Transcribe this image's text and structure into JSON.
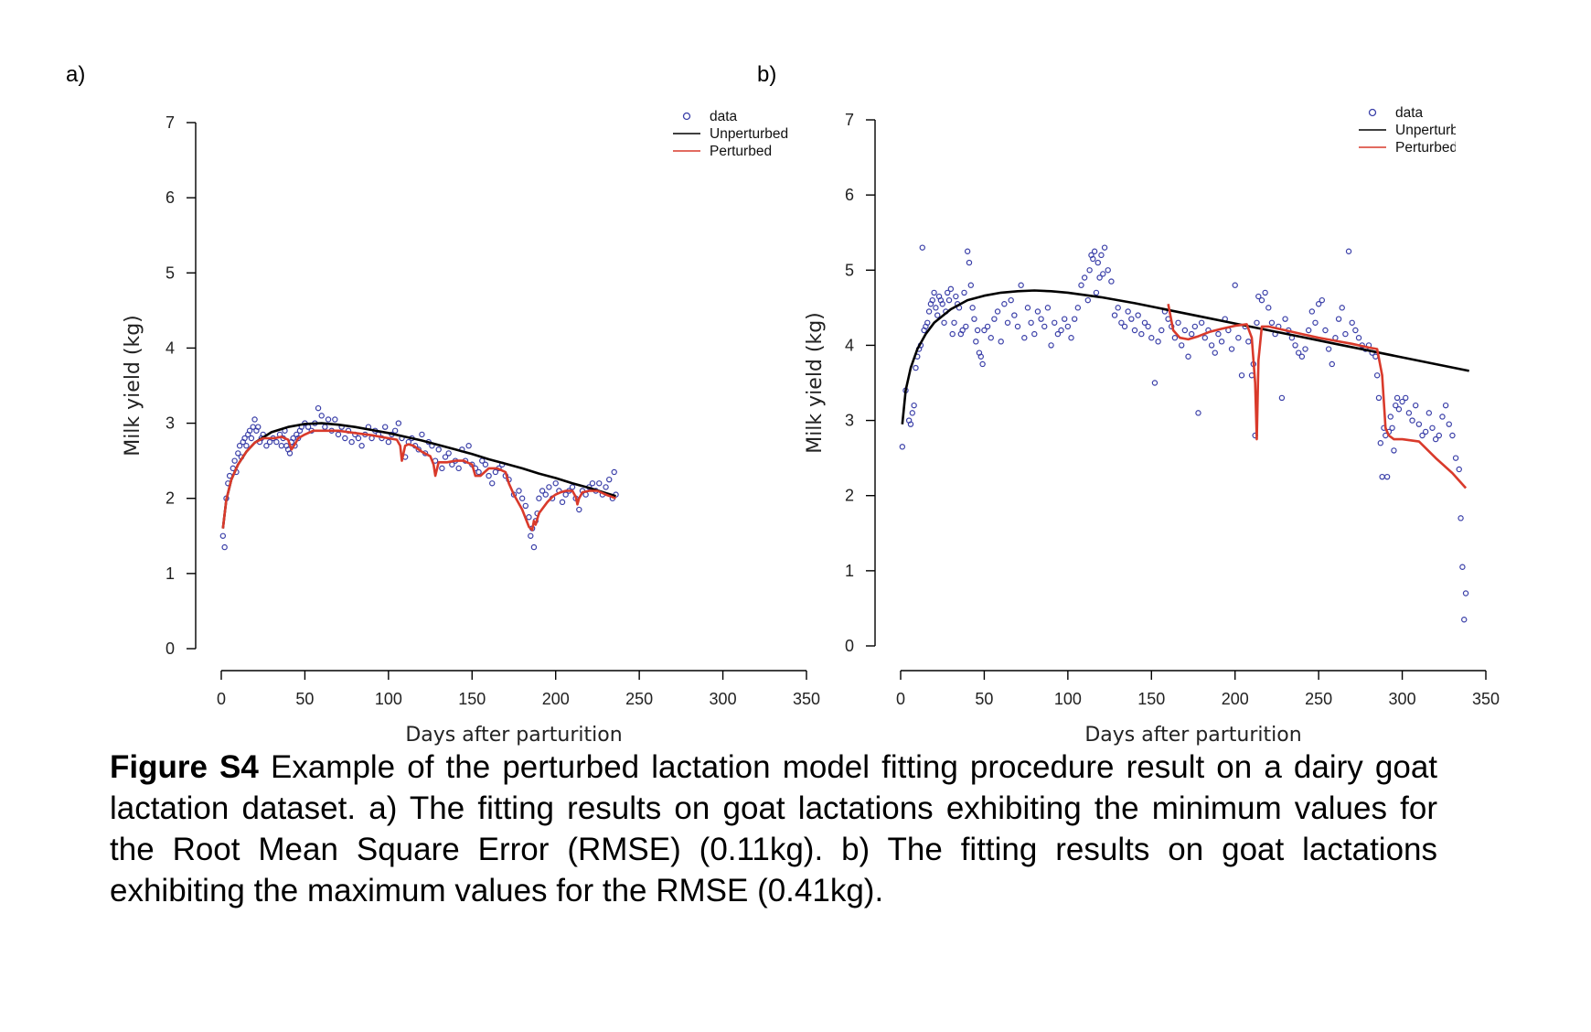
{
  "panels": [
    {
      "label": "a)"
    },
    {
      "label": "b)"
    }
  ],
  "caption": {
    "bold": "Figure S4",
    "text": " Example of the perturbed lactation model fitting procedure result on a dairy goat lactation dataset. a) The fitting results on goat lactations exhibiting the minimum values for the Root Mean Square Error (RMSE) (0.11kg). b) The fitting results on goat lactations exhibiting the maximum values for the RMSE (0.41kg)."
  },
  "colors": {
    "data": "#3a3fa8",
    "unperturbed": "#000000",
    "perturbed": "#d93a2b"
  },
  "chart_data": [
    {
      "type": "scatter",
      "xlabel": "Days after parturition",
      "ylabel": "Milk yield (kg)",
      "xlim": [
        0,
        350
      ],
      "ylim": [
        0,
        7
      ],
      "xticks": [
        0,
        50,
        100,
        150,
        200,
        250,
        300,
        350
      ],
      "yticks": [
        0,
        1,
        2,
        3,
        4,
        5,
        6,
        7
      ],
      "legend": {
        "position": "top-right",
        "entries": [
          "data",
          "Unperturbed",
          "Perturbed"
        ]
      },
      "series": [
        {
          "name": "data",
          "kind": "points",
          "x": [
            1,
            2,
            3,
            4,
            5,
            7,
            8,
            9,
            10,
            11,
            12,
            13,
            14,
            15,
            16,
            17,
            18,
            19,
            20,
            21,
            22,
            23,
            24,
            25,
            27,
            29,
            31,
            33,
            35,
            36,
            37,
            38,
            39,
            40,
            41,
            42,
            43,
            44,
            45,
            46,
            47,
            48,
            50,
            52,
            54,
            56,
            58,
            60,
            62,
            64,
            66,
            68,
            70,
            72,
            74,
            76,
            78,
            80,
            82,
            84,
            86,
            88,
            90,
            92,
            94,
            96,
            98,
            100,
            102,
            104,
            106,
            108,
            110,
            112,
            114,
            116,
            118,
            120,
            122,
            124,
            126,
            128,
            130,
            132,
            134,
            136,
            138,
            140,
            142,
            144,
            146,
            148,
            150,
            152,
            154,
            156,
            158,
            160,
            162,
            164,
            166,
            168,
            170,
            172,
            175,
            178,
            180,
            182,
            184,
            185,
            186,
            187,
            188,
            189,
            190,
            192,
            194,
            196,
            198,
            200,
            202,
            204,
            206,
            208,
            210,
            212,
            214,
            216,
            218,
            220,
            222,
            224,
            226,
            228,
            230,
            232,
            234,
            235,
            236
          ],
          "y": [
            1.5,
            1.35,
            2.0,
            2.2,
            2.3,
            2.4,
            2.5,
            2.35,
            2.6,
            2.7,
            2.55,
            2.75,
            2.8,
            2.7,
            2.85,
            2.9,
            2.8,
            2.95,
            3.05,
            2.9,
            2.95,
            2.75,
            2.8,
            2.85,
            2.7,
            2.75,
            2.8,
            2.75,
            2.85,
            2.7,
            2.8,
            2.9,
            2.7,
            2.65,
            2.6,
            2.75,
            2.8,
            2.7,
            2.85,
            2.8,
            2.9,
            2.95,
            3.0,
            2.95,
            2.9,
            3.0,
            3.2,
            3.1,
            2.95,
            3.05,
            2.9,
            3.05,
            2.85,
            2.95,
            2.8,
            2.9,
            2.75,
            2.85,
            2.8,
            2.7,
            2.85,
            2.95,
            2.8,
            2.9,
            2.85,
            2.8,
            2.95,
            2.75,
            2.85,
            2.9,
            3.0,
            2.8,
            2.55,
            2.75,
            2.8,
            2.7,
            2.65,
            2.85,
            2.6,
            2.75,
            2.7,
            2.5,
            2.65,
            2.4,
            2.55,
            2.6,
            2.45,
            2.5,
            2.4,
            2.65,
            2.5,
            2.7,
            2.45,
            2.4,
            2.35,
            2.5,
            2.45,
            2.3,
            2.2,
            2.35,
            2.4,
            2.45,
            2.3,
            2.25,
            2.05,
            2.1,
            2.0,
            1.9,
            1.75,
            1.5,
            1.6,
            1.35,
            1.7,
            1.8,
            2.0,
            2.1,
            2.05,
            2.15,
            2.0,
            2.2,
            2.1,
            1.95,
            2.05,
            2.1,
            2.15,
            2.0,
            1.85,
            2.1,
            2.05,
            2.15,
            2.2,
            2.1,
            2.2,
            2.05,
            2.15,
            2.25,
            2.0,
            2.35,
            2.05
          ]
        },
        {
          "name": "Unperturbed",
          "kind": "line",
          "x": [
            1,
            3,
            6,
            10,
            15,
            20,
            30,
            40,
            50,
            60,
            70,
            80,
            90,
            100,
            110,
            120,
            130,
            140,
            150,
            160,
            170,
            180,
            190,
            200,
            210,
            220,
            230,
            236
          ],
          "y": [
            1.6,
            1.98,
            2.25,
            2.45,
            2.62,
            2.74,
            2.88,
            2.95,
            2.99,
            3.0,
            2.98,
            2.95,
            2.91,
            2.87,
            2.82,
            2.77,
            2.71,
            2.65,
            2.59,
            2.52,
            2.46,
            2.4,
            2.33,
            2.27,
            2.2,
            2.14,
            2.07,
            2.03
          ]
        },
        {
          "name": "Perturbed",
          "kind": "line",
          "x": [
            1,
            3,
            6,
            10,
            15,
            20,
            25,
            28,
            32,
            36,
            40,
            42,
            44,
            46,
            50,
            55,
            60,
            70,
            80,
            90,
            100,
            105,
            107,
            108,
            110,
            112,
            115,
            120,
            125,
            127,
            128,
            130,
            135,
            140,
            145,
            150,
            152,
            155,
            160,
            165,
            170,
            172,
            175,
            180,
            184,
            186,
            187,
            188,
            190,
            195,
            198,
            200,
            203,
            206,
            210,
            212,
            213,
            214,
            216,
            220,
            225,
            230,
            236
          ],
          "y": [
            1.6,
            1.98,
            2.25,
            2.45,
            2.62,
            2.74,
            2.8,
            2.8,
            2.8,
            2.82,
            2.78,
            2.65,
            2.72,
            2.8,
            2.85,
            2.9,
            2.9,
            2.9,
            2.87,
            2.84,
            2.8,
            2.78,
            2.7,
            2.5,
            2.7,
            2.72,
            2.7,
            2.62,
            2.56,
            2.45,
            2.3,
            2.48,
            2.48,
            2.5,
            2.5,
            2.45,
            2.3,
            2.3,
            2.4,
            2.4,
            2.35,
            2.2,
            2.05,
            1.85,
            1.62,
            1.58,
            1.7,
            1.65,
            1.8,
            1.95,
            2.02,
            2.05,
            2.08,
            2.1,
            2.1,
            2.02,
            1.92,
            2.0,
            2.08,
            2.1,
            2.1,
            2.05,
            2.0
          ]
        }
      ]
    },
    {
      "type": "scatter",
      "xlabel": "Days after parturition",
      "ylabel": "Milk yield (kg)",
      "xlim": [
        0,
        350
      ],
      "ylim": [
        0,
        7
      ],
      "xticks": [
        0,
        50,
        100,
        150,
        200,
        250,
        300,
        350
      ],
      "yticks": [
        0,
        1,
        2,
        3,
        4,
        5,
        6,
        7
      ],
      "legend": {
        "position": "top-right",
        "entries": [
          "data",
          "Unperturbed",
          "Perturbed"
        ]
      },
      "series": [
        {
          "name": "data",
          "kind": "points",
          "x": [
            1,
            3,
            5,
            6,
            7,
            8,
            9,
            10,
            11,
            12,
            13,
            14,
            15,
            16,
            17,
            18,
            19,
            20,
            21,
            22,
            23,
            24,
            25,
            26,
            27,
            28,
            29,
            30,
            31,
            32,
            33,
            34,
            35,
            36,
            37,
            38,
            39,
            40,
            41,
            42,
            43,
            44,
            45,
            46,
            47,
            48,
            49,
            50,
            52,
            54,
            56,
            58,
            60,
            62,
            64,
            66,
            68,
            70,
            72,
            74,
            76,
            78,
            80,
            82,
            84,
            86,
            88,
            90,
            92,
            94,
            96,
            98,
            100,
            102,
            104,
            106,
            108,
            110,
            112,
            113,
            114,
            115,
            116,
            117,
            118,
            119,
            120,
            121,
            122,
            124,
            126,
            128,
            130,
            132,
            134,
            136,
            138,
            140,
            142,
            144,
            146,
            148,
            150,
            152,
            154,
            156,
            158,
            160,
            162,
            164,
            166,
            168,
            170,
            172,
            174,
            176,
            178,
            180,
            182,
            184,
            186,
            188,
            190,
            192,
            194,
            196,
            198,
            200,
            202,
            204,
            206,
            208,
            210,
            211,
            212,
            213,
            214,
            216,
            218,
            220,
            222,
            224,
            226,
            228,
            230,
            232,
            234,
            236,
            238,
            240,
            242,
            244,
            246,
            248,
            250,
            252,
            254,
            256,
            258,
            260,
            262,
            264,
            266,
            268,
            270,
            272,
            274,
            276,
            278,
            280,
            282,
            284,
            285,
            286,
            287,
            288,
            289,
            290,
            291,
            292,
            293,
            294,
            295,
            296,
            297,
            298,
            300,
            302,
            304,
            306,
            308,
            310,
            312,
            314,
            316,
            318,
            320,
            322,
            324,
            326,
            328,
            330,
            332,
            334,
            335,
            336,
            337,
            338
          ],
          "y": [
            2.65,
            3.4,
            3.0,
            2.95,
            3.1,
            3.2,
            3.7,
            3.85,
            3.95,
            4.0,
            5.3,
            4.2,
            4.25,
            4.3,
            4.45,
            4.55,
            4.6,
            4.7,
            4.5,
            4.4,
            4.65,
            4.6,
            4.55,
            4.3,
            4.45,
            4.7,
            4.6,
            4.75,
            4.15,
            4.3,
            4.65,
            4.55,
            4.5,
            4.15,
            4.2,
            4.7,
            4.25,
            5.25,
            5.1,
            4.8,
            4.5,
            4.35,
            4.05,
            4.2,
            3.9,
            3.85,
            3.75,
            4.2,
            4.25,
            4.1,
            4.35,
            4.45,
            4.05,
            4.55,
            4.3,
            4.6,
            4.4,
            4.25,
            4.8,
            4.1,
            4.5,
            4.3,
            4.15,
            4.45,
            4.35,
            4.25,
            4.5,
            4.0,
            4.3,
            4.15,
            4.2,
            4.35,
            4.25,
            4.1,
            4.35,
            4.5,
            4.8,
            4.9,
            4.6,
            5.0,
            5.2,
            5.15,
            5.25,
            4.7,
            5.1,
            4.9,
            5.2,
            4.95,
            5.3,
            5.0,
            4.85,
            4.4,
            4.5,
            4.3,
            4.25,
            4.45,
            4.35,
            4.2,
            4.4,
            4.15,
            4.3,
            4.25,
            4.1,
            3.5,
            4.05,
            4.2,
            4.45,
            4.35,
            4.25,
            4.1,
            4.3,
            4.0,
            4.2,
            3.85,
            4.15,
            4.25,
            3.1,
            4.3,
            4.1,
            4.2,
            4.0,
            3.9,
            4.15,
            4.05,
            4.35,
            4.2,
            3.95,
            4.8,
            4.1,
            3.6,
            4.25,
            4.05,
            3.6,
            3.75,
            2.8,
            4.3,
            4.65,
            4.6,
            4.7,
            4.5,
            4.3,
            4.15,
            4.25,
            3.3,
            4.35,
            4.2,
            4.1,
            4.0,
            3.9,
            3.85,
            3.95,
            4.2,
            4.45,
            4.3,
            4.55,
            4.6,
            4.2,
            3.95,
            3.75,
            4.1,
            4.35,
            4.5,
            4.15,
            5.25,
            4.3,
            4.2,
            4.1,
            4.0,
            3.95,
            4.0,
            3.9,
            3.85,
            3.6,
            3.3,
            2.7,
            2.25,
            2.9,
            2.8,
            2.25,
            2.85,
            3.05,
            2.9,
            2.6,
            3.2,
            3.3,
            3.15,
            3.25,
            3.3,
            3.1,
            3.0,
            3.2,
            2.95,
            2.8,
            2.85,
            3.1,
            2.9,
            2.75,
            2.8,
            3.05,
            3.2,
            2.95,
            2.8,
            2.5,
            2.35,
            1.7,
            1.05,
            0.35,
            0.7
          ]
        },
        {
          "name": "Unperturbed",
          "kind": "line",
          "x": [
            1,
            3,
            6,
            10,
            15,
            20,
            30,
            40,
            50,
            60,
            70,
            80,
            90,
            100,
            120,
            140,
            160,
            180,
            200,
            220,
            240,
            260,
            280,
            300,
            320,
            340
          ],
          "y": [
            2.95,
            3.4,
            3.7,
            3.95,
            4.15,
            4.3,
            4.48,
            4.6,
            4.66,
            4.7,
            4.72,
            4.73,
            4.72,
            4.7,
            4.64,
            4.56,
            4.47,
            4.38,
            4.29,
            4.2,
            4.11,
            4.02,
            3.93,
            3.84,
            3.75,
            3.66
          ]
        },
        {
          "name": "Perturbed",
          "kind": "line",
          "x": [
            160,
            163,
            167,
            172,
            178,
            185,
            192,
            200,
            207,
            210,
            212,
            213,
            214,
            216,
            220,
            230,
            240,
            250,
            260,
            270,
            280,
            285,
            288,
            290,
            292,
            295,
            300,
            310,
            320,
            330,
            338
          ],
          "y": [
            4.55,
            4.2,
            4.1,
            4.08,
            4.12,
            4.18,
            4.22,
            4.26,
            4.28,
            4.1,
            3.5,
            2.75,
            3.8,
            4.25,
            4.25,
            4.2,
            4.15,
            4.1,
            4.06,
            4.02,
            3.97,
            3.95,
            3.6,
            2.9,
            2.8,
            2.75,
            2.75,
            2.72,
            2.5,
            2.3,
            2.1
          ]
        }
      ]
    }
  ]
}
